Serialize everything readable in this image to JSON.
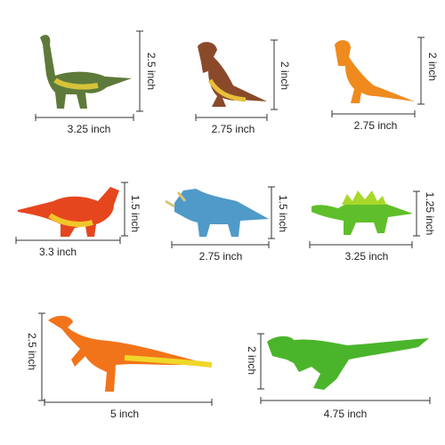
{
  "items": [
    {
      "width": "3.25 inch",
      "height": "2.5 inch"
    },
    {
      "width": "2.75 inch",
      "height": "2 inch"
    },
    {
      "width": "2.75 inch",
      "height": "2 inch"
    },
    {
      "width": "3.3 inch",
      "height": "1.5 inch"
    },
    {
      "width": "2.75 inch",
      "height": "1.5 inch"
    },
    {
      "width": "3.25 inch",
      "height": "1.25 inch"
    },
    {
      "width": "5 inch",
      "height": "2.5 inch"
    },
    {
      "width": "4.75 inch",
      "height": "2 inch"
    }
  ]
}
